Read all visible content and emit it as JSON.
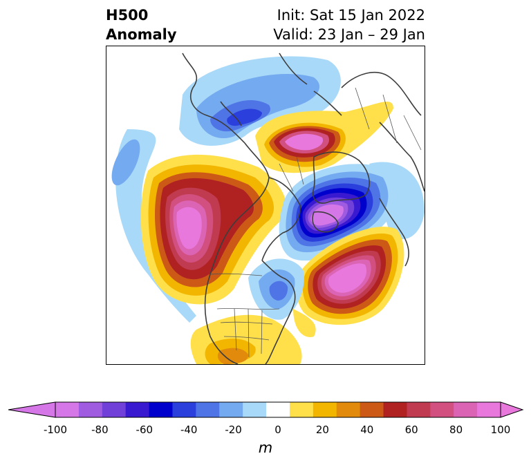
{
  "title": {
    "left_line1": "H500",
    "left_line2": "Anomaly",
    "right_line1": "Init: Sat 15 Jan 2022",
    "right_line2": "Valid: 23 Jan – 29 Jan"
  },
  "colorbar": {
    "unit": "m",
    "ticks": [
      "-100",
      "-80",
      "-60",
      "-40",
      "-20",
      "0",
      "20",
      "40",
      "60",
      "80",
      "100"
    ],
    "bins": [
      {
        "range": "<-100",
        "color": "#d677e8"
      },
      {
        "range": "-100..-90",
        "color": "#d677e8"
      },
      {
        "range": "-90..-80",
        "color": "#a05ce0"
      },
      {
        "range": "-80..-70",
        "color": "#7040d8"
      },
      {
        "range": "-70..-60",
        "color": "#3a1ad0"
      },
      {
        "range": "-60..-50",
        "color": "#0000cc"
      },
      {
        "range": "-50..-40",
        "color": "#2a3fdc"
      },
      {
        "range": "-40..-30",
        "color": "#4f74e6"
      },
      {
        "range": "-30..-20",
        "color": "#74aaf0"
      },
      {
        "range": "-20..-10",
        "color": "#a9d9f8"
      },
      {
        "range": "-10..10",
        "color": "#ffffff"
      },
      {
        "range": "10..20",
        "color": "#ffe04a"
      },
      {
        "range": "20..30",
        "color": "#f2b600"
      },
      {
        "range": "30..40",
        "color": "#e28a0c"
      },
      {
        "range": "40..50",
        "color": "#cc5a16"
      },
      {
        "range": "50..60",
        "color": "#b02222"
      },
      {
        "range": "60..70",
        "color": "#c03a50"
      },
      {
        "range": "70..80",
        "color": "#d25080"
      },
      {
        "range": "80..90",
        "color": "#dc64b4"
      },
      {
        "range": "90..100",
        "color": "#e878dc"
      },
      {
        "range": ">100",
        "color": "#e878dc"
      }
    ]
  },
  "map": {
    "projection": "north-polar-stereographic",
    "field": "500 hPa geopotential height anomaly",
    "features": [
      {
        "name": "gulf-of-alaska-ridge",
        "sign": "positive",
        "peak": ">100"
      },
      {
        "name": "hudson-bay-trough",
        "sign": "negative",
        "peak": "<-100"
      },
      {
        "name": "north-atlantic-ridge",
        "sign": "positive",
        "peak": ">100"
      },
      {
        "name": "north-siberia-ridge",
        "sign": "positive",
        "peak": ">90"
      },
      {
        "name": "eurasia-trough",
        "sign": "negative",
        "peak": "-70"
      },
      {
        "name": "eastern-us-trough",
        "sign": "negative",
        "peak": "-40"
      },
      {
        "name": "western-pacific-trough",
        "sign": "negative",
        "peak": "-40"
      }
    ]
  }
}
